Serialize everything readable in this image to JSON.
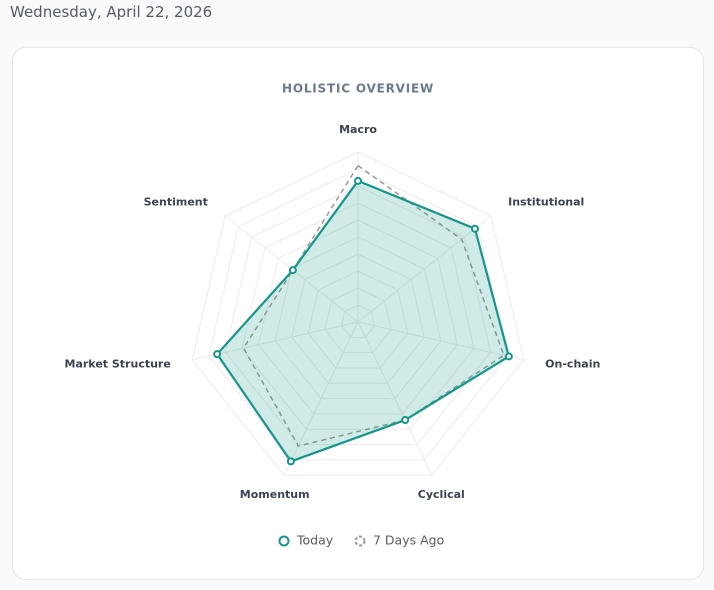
{
  "date": "Wednesday, April 22, 2026",
  "chart_data": {
    "type": "radar",
    "title": "HOLISTIC OVERVIEW",
    "categories": [
      "Macro",
      "Institutional",
      "On-chain",
      "Cyclical",
      "Momentum",
      "Market Structure",
      "Sentiment"
    ],
    "rlim": [
      0,
      100
    ],
    "rticks": [
      10,
      20,
      30,
      40,
      50,
      60,
      70,
      80,
      90,
      100
    ],
    "grid": true,
    "series": [
      {
        "name": "Today",
        "color": "#15968a",
        "values": [
          83,
          88,
          91,
          64,
          91,
          85,
          49
        ]
      },
      {
        "name": "7 Days Ago",
        "color": "#9a9a9a",
        "dashed": true,
        "values": [
          92,
          78,
          88,
          64,
          81,
          69,
          49
        ]
      }
    ]
  }
}
